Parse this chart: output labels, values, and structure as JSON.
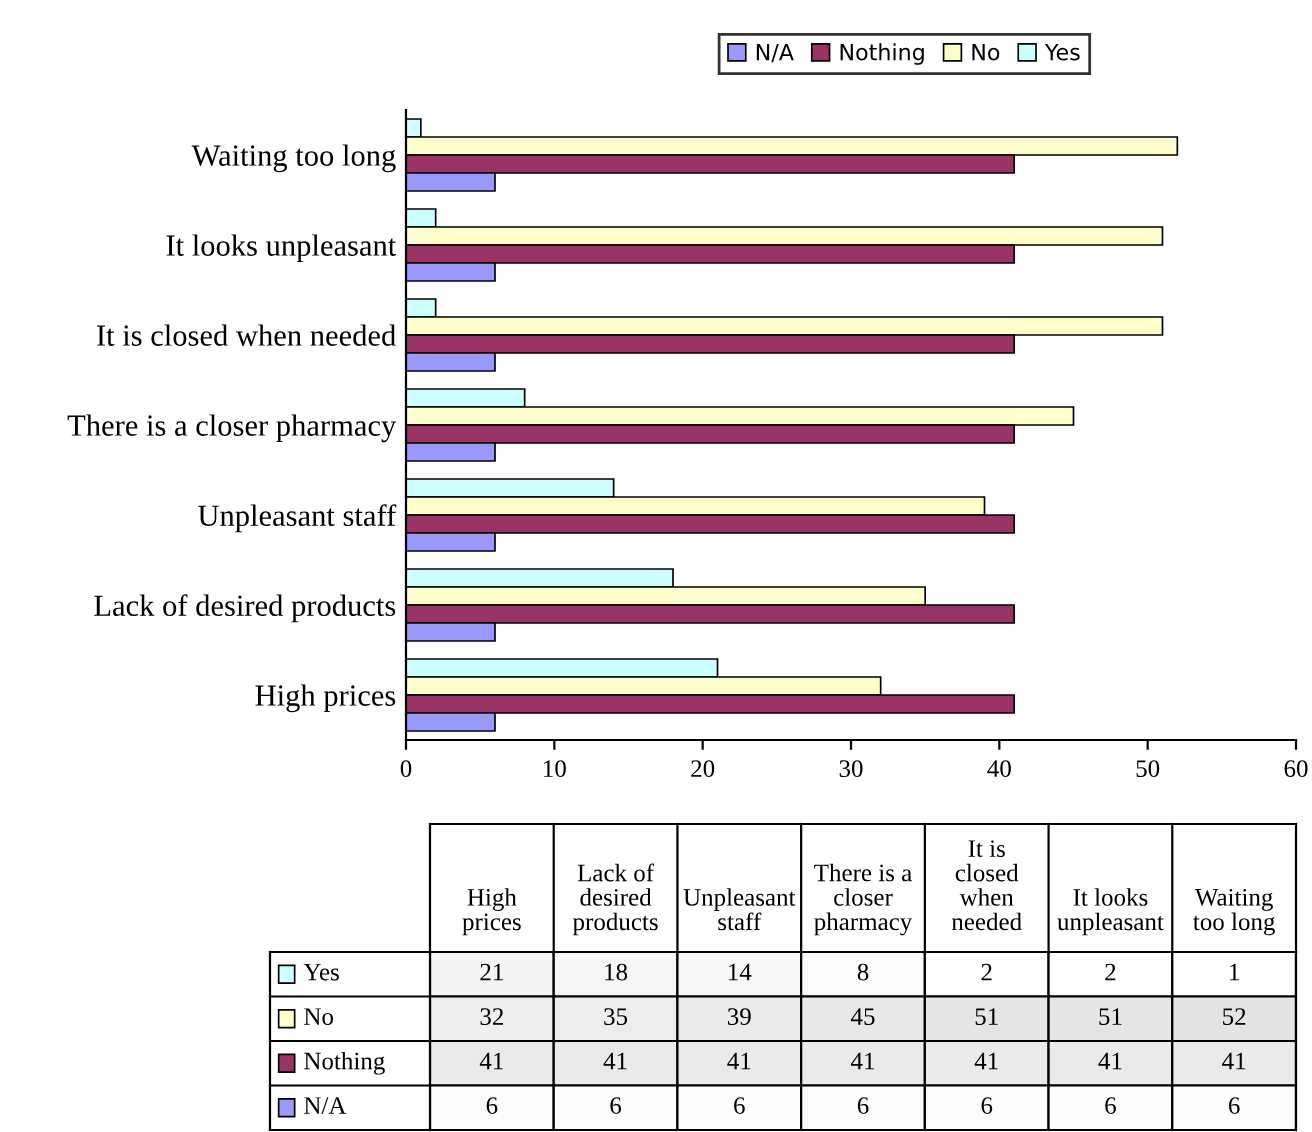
{
  "chart_data": [
    {
      "type": "bar",
      "orientation": "horizontal",
      "categories": [
        "Waiting too long",
        "It looks unpleasant",
        "It is closed when needed",
        "There is a closer pharmacy",
        "Unpleasant staff",
        "Lack of desired products",
        "High prices"
      ],
      "series": [
        {
          "name": "Yes",
          "color": "#ccffff",
          "values": [
            1,
            2,
            2,
            8,
            14,
            18,
            21
          ]
        },
        {
          "name": "No",
          "color": "#ffffcc",
          "values": [
            52,
            51,
            51,
            45,
            39,
            35,
            32
          ]
        },
        {
          "name": "Nothing",
          "color": "#993366",
          "values": [
            41,
            41,
            41,
            41,
            41,
            41,
            41
          ]
        },
        {
          "name": "N/A",
          "color": "#9999ff",
          "values": [
            6,
            6,
            6,
            6,
            6,
            6,
            6
          ]
        }
      ],
      "xlim": [
        0,
        60
      ],
      "xticks": [
        0,
        10,
        20,
        30,
        40,
        50,
        60
      ],
      "grid": false,
      "legend": "top"
    },
    {
      "type": "heatmap",
      "categories": [
        "High prices",
        "Lack of desired products",
        "Unpleasant staff",
        "There is a closer pharmacy",
        "It is closed when needed",
        "It looks unpleasant",
        "Waiting too long"
      ],
      "y_categories": [
        "Yes",
        "No",
        "Nothing",
        "N/A"
      ],
      "cells": [
        [
          21,
          18,
          14,
          8,
          2,
          2,
          1
        ],
        [
          32,
          35,
          39,
          45,
          51,
          51,
          52
        ],
        [
          41,
          41,
          41,
          41,
          41,
          41,
          41
        ],
        [
          6,
          6,
          6,
          6,
          6,
          6,
          6
        ]
      ],
      "cell_labels": [
        [
          "21",
          "18",
          "14",
          "8",
          "2",
          "2",
          "1"
        ],
        [
          "32",
          "35",
          "39",
          "45",
          "51",
          "51",
          "52"
        ],
        [
          "41",
          "41",
          "41",
          "41",
          "41",
          "41",
          "41"
        ],
        [
          "6",
          "6",
          "6",
          "6",
          "6",
          "6",
          "6"
        ]
      ]
    }
  ]
}
